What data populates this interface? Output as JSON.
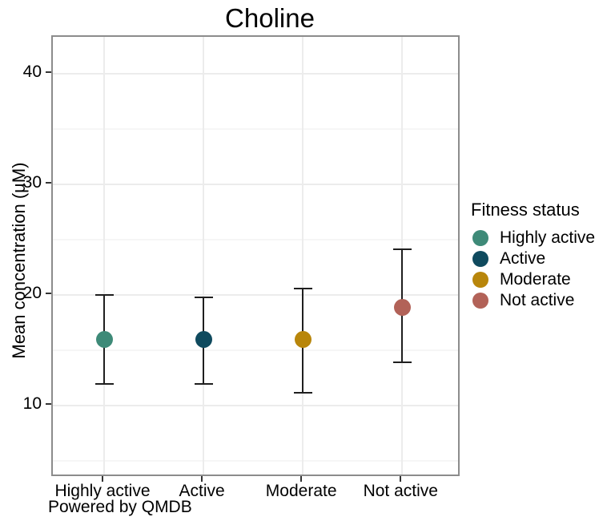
{
  "title": "Choline",
  "y_axis_label": "Mean concentration (µM)",
  "caption": "Powered by QMDB",
  "legend": {
    "title": "Fitness status",
    "entries": [
      {
        "label": "Highly active",
        "color": "#3E8A78"
      },
      {
        "label": "Active",
        "color": "#0F4A5E"
      },
      {
        "label": "Moderate",
        "color": "#B8860B"
      },
      {
        "label": "Not active",
        "color": "#B26258"
      }
    ]
  },
  "chart_data": {
    "type": "scatter",
    "variant": "mean-with-error-bars",
    "title": "Choline",
    "xlabel": "",
    "ylabel": "Mean concentration (µM)",
    "categories": [
      "Highly active",
      "Active",
      "Moderate",
      "Not active"
    ],
    "series": [
      {
        "name": "Mean",
        "values": [
          16,
          16,
          16,
          18.9
        ]
      },
      {
        "name": "CI lower",
        "values": [
          12,
          12,
          11.2,
          13.9
        ]
      },
      {
        "name": "CI upper",
        "values": [
          20,
          19.8,
          20.6,
          24.1
        ]
      }
    ],
    "point_colors": [
      "#3E8A78",
      "#0F4A5E",
      "#B8860B",
      "#B26258"
    ],
    "y_axis": {
      "ticks": [
        10,
        20,
        30,
        40
      ],
      "minor_ticks": [
        5,
        15,
        25,
        35
      ],
      "range": [
        3.5,
        43.3
      ]
    },
    "grid": {
      "horizontal_major": true,
      "horizontal_minor": true,
      "vertical_major_at_categories": true
    },
    "legend_position": "right"
  },
  "colors": {
    "panel_border": "#8c8c8c",
    "grid_major": "#ececec",
    "grid_minor": "#f6f6f6",
    "error_bar": "#1f1f1f",
    "tick_mark": "#333333",
    "text": "#000000"
  }
}
